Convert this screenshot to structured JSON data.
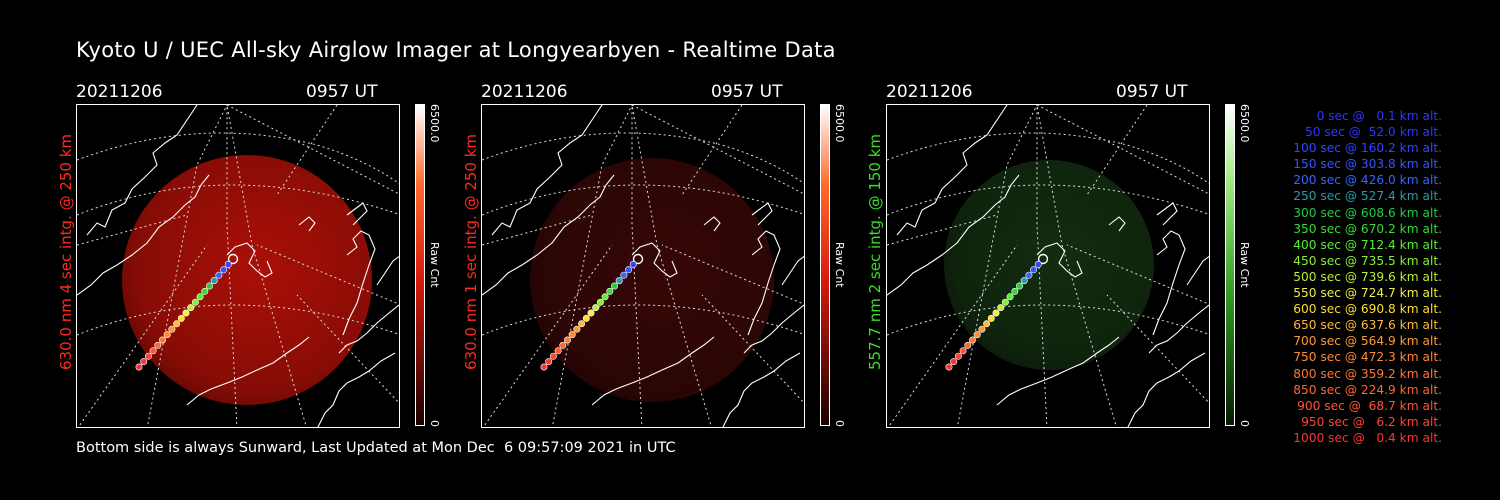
{
  "title": "Kyoto U / UEC All-sky Airglow Imager at Longyearbyen - Realtime Data",
  "footer": "Bottom side is always Sunward, Last Updated at Mon Dec  6 09:57:09 2021 in UTC",
  "panels": [
    {
      "date": "20211206",
      "time": "0957 UT",
      "side_label": "630.0 nm 4 sec intg. @ 250 km",
      "colorbar_max": "6500.0",
      "colorbar_min": "0",
      "colorbar_unit": "Raw Cnt",
      "color": "#ff2a1f",
      "glow_color": "#c81208",
      "glow_intensity": 0.85
    },
    {
      "date": "20211206",
      "time": "0957 UT",
      "side_label": "630.0 nm 1 sec intg. @ 250 km",
      "colorbar_max": "6500.0",
      "colorbar_min": "0",
      "colorbar_unit": "Raw Cnt",
      "color": "#ff2a1f",
      "glow_color": "#5a0c0a",
      "glow_intensity": 0.6
    },
    {
      "date": "20211206",
      "time": "0957 UT",
      "side_label": "557.7 nm 2 sec intg. @ 150 km",
      "colorbar_max": "6500.0",
      "colorbar_min": "0",
      "colorbar_unit": "Raw Cnt",
      "color": "#3ddc2a",
      "glow_color": "#1f4a1a",
      "glow_intensity": 0.6
    }
  ],
  "legend": [
    {
      "text": "0 sec @   0.1 km alt.",
      "color": "#3333ff"
    },
    {
      "text": "50 sec @  52.0 km alt.",
      "color": "#3333ff"
    },
    {
      "text": "100 sec @ 160.2 km alt.",
      "color": "#3344ff"
    },
    {
      "text": "150 sec @ 303.8 km alt.",
      "color": "#3355ff"
    },
    {
      "text": "200 sec @ 426.0 km alt.",
      "color": "#3366ff"
    },
    {
      "text": "250 sec @ 527.4 km alt.",
      "color": "#2b9aa8"
    },
    {
      "text": "300 sec @ 608.6 km alt.",
      "color": "#22cc44"
    },
    {
      "text": "350 sec @ 670.2 km alt.",
      "color": "#33dd33"
    },
    {
      "text": "400 sec @ 712.4 km alt.",
      "color": "#55ee33"
    },
    {
      "text": "450 sec @ 735.5 km alt.",
      "color": "#88ee33"
    },
    {
      "text": "500 sec @ 739.6 km alt.",
      "color": "#bbee33"
    },
    {
      "text": "550 sec @ 724.7 km alt.",
      "color": "#eeee44"
    },
    {
      "text": "600 sec @ 690.8 km alt.",
      "color": "#ffdd33"
    },
    {
      "text": "650 sec @ 637.6 km alt.",
      "color": "#ffbb33"
    },
    {
      "text": "700 sec @ 564.9 km alt.",
      "color": "#ff9933"
    },
    {
      "text": "750 sec @ 472.3 km alt.",
      "color": "#ff8833"
    },
    {
      "text": "800 sec @ 359.2 km alt.",
      "color": "#ff7733"
    },
    {
      "text": "850 sec @ 224.9 km alt.",
      "color": "#ff6633"
    },
    {
      "text": "900 sec @  68.7 km alt.",
      "color": "#ff5533"
    },
    {
      "text": "950 sec @   6.2 km alt.",
      "color": "#ff4433"
    },
    {
      "text": "1000 sec @   0.4 km alt.",
      "color": "#ff3333"
    }
  ]
}
